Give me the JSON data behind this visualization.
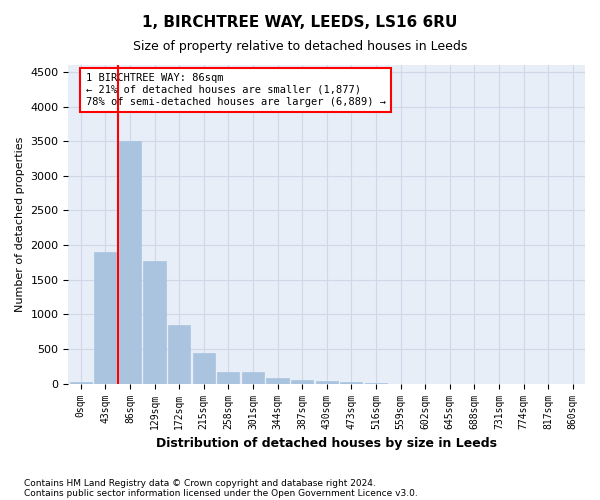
{
  "title": "1, BIRCHTREE WAY, LEEDS, LS16 6RU",
  "subtitle": "Size of property relative to detached houses in Leeds",
  "xlabel": "Distribution of detached houses by size in Leeds",
  "ylabel": "Number of detached properties",
  "footnote1": "Contains HM Land Registry data © Crown copyright and database right 2024.",
  "footnote2": "Contains public sector information licensed under the Open Government Licence v3.0.",
  "bin_labels": [
    "0sqm",
    "43sqm",
    "86sqm",
    "129sqm",
    "172sqm",
    "215sqm",
    "258sqm",
    "301sqm",
    "344sqm",
    "387sqm",
    "430sqm",
    "473sqm",
    "516sqm",
    "559sqm",
    "602sqm",
    "645sqm",
    "688sqm",
    "731sqm",
    "774sqm",
    "817sqm",
    "860sqm"
  ],
  "bar_values": [
    30,
    1900,
    3500,
    1775,
    840,
    445,
    170,
    165,
    85,
    55,
    45,
    30,
    15,
    0,
    0,
    0,
    0,
    0,
    0,
    0,
    0
  ],
  "bar_color": "#aac4e0",
  "line_x_index": 2,
  "line_color": "red",
  "annotation_text": "1 BIRCHTREE WAY: 86sqm\n← 21% of detached houses are smaller (1,877)\n78% of semi-detached houses are larger (6,889) →",
  "annotation_box_color": "white",
  "annotation_box_edgecolor": "red",
  "ylim": [
    0,
    4600
  ],
  "yticks": [
    0,
    500,
    1000,
    1500,
    2000,
    2500,
    3000,
    3500,
    4000,
    4500
  ],
  "grid_color": "#d0d8e8",
  "background_color": "#e8eef8"
}
